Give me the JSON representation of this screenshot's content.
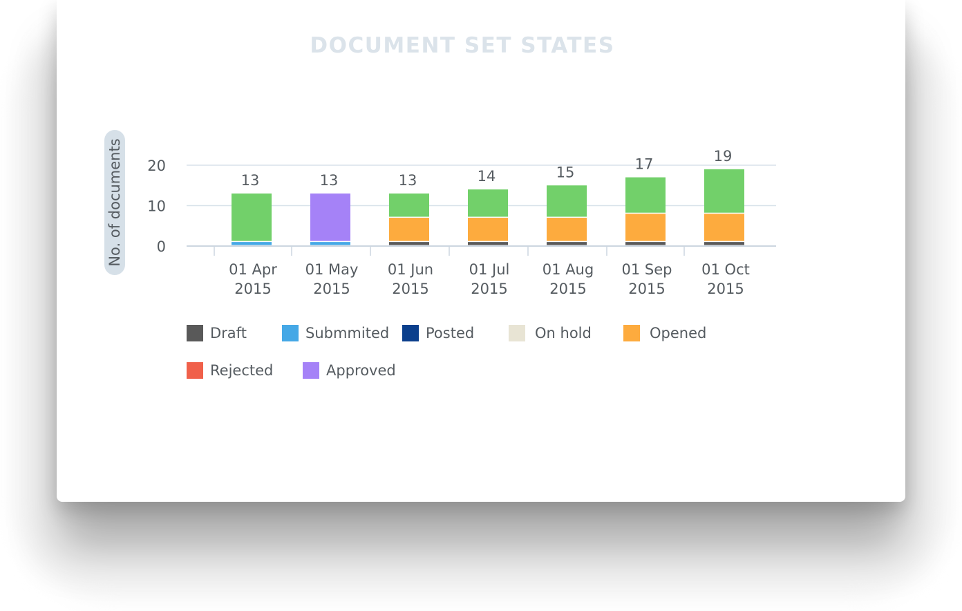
{
  "chart_data": {
    "type": "bar",
    "stacked": true,
    "title": "DOCUMENT SET STATES",
    "ylabel": "No. of documents",
    "xlabel": "",
    "ylim": [
      0,
      20
    ],
    "yticks": [
      0,
      10,
      20
    ],
    "grid": true,
    "legend_position": "bottom",
    "categories": [
      "01 Apr 2015",
      "01 May 2015",
      "01 Jun 2015",
      "01 Jul 2015",
      "01 Aug 2015",
      "01 Sep 2015",
      "01 Oct 2015"
    ],
    "totals": [
      13,
      13,
      13,
      14,
      15,
      17,
      19
    ],
    "series": [
      {
        "name": "Draft",
        "color": "#595959",
        "values": [
          0,
          0,
          1,
          1,
          1,
          1,
          1
        ]
      },
      {
        "name": "Submmited",
        "color": "#45a8e6",
        "values": [
          1,
          1,
          0,
          0,
          0,
          0,
          0
        ]
      },
      {
        "name": "Posted",
        "color": "#0b3f8c",
        "values": [
          0,
          0,
          0,
          0,
          0,
          0,
          0
        ]
      },
      {
        "name": "On hold",
        "color": "#e8e4d4",
        "values": [
          0,
          0,
          0,
          0,
          0,
          0,
          0
        ]
      },
      {
        "name": "Opened",
        "color": "#fdab3e",
        "values": [
          0,
          0,
          6,
          6,
          6,
          7,
          7
        ]
      },
      {
        "name": "Rejected",
        "color": "#f0604a",
        "values": [
          0,
          0,
          0,
          0,
          0,
          0,
          0
        ]
      },
      {
        "name": "Approved",
        "color": "#a582f7",
        "values": [
          0,
          12,
          0,
          0,
          0,
          0,
          0
        ]
      },
      {
        "values": [
          12,
          0,
          6,
          7,
          8,
          9,
          11
        ],
        "color": "#72d06a"
      }
    ]
  }
}
